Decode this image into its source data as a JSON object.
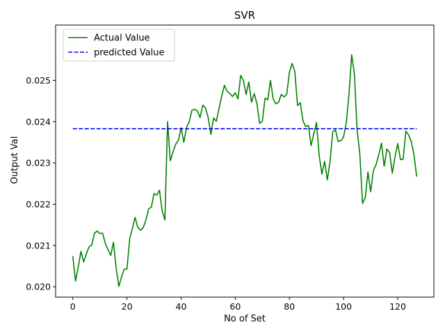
{
  "chart_data": {
    "type": "line",
    "title": "SVR",
    "xlabel": "No of Set",
    "ylabel": "Output Val",
    "xlim": [
      -6.35,
      133.35
    ],
    "ylim": [
      0.01975,
      0.02634
    ],
    "xticks": [
      0,
      20,
      40,
      60,
      80,
      100,
      120
    ],
    "xtick_labels": [
      "0",
      "20",
      "40",
      "60",
      "80",
      "100",
      "120"
    ],
    "yticks": [
      0.02,
      0.021,
      0.022,
      0.023,
      0.024,
      0.025
    ],
    "ytick_labels": [
      "0.020",
      "0.021",
      "0.022",
      "0.023",
      "0.024",
      "0.025"
    ],
    "grid": false,
    "legend_position": "upper-left",
    "series": [
      {
        "name": "Actual Value",
        "style": "solid",
        "color": "#008000",
        "x": [
          0,
          1,
          2,
          3,
          4,
          5,
          6,
          7,
          8,
          9,
          10,
          11,
          12,
          13,
          14,
          15,
          16,
          17,
          18,
          19,
          20,
          21,
          22,
          23,
          24,
          25,
          26,
          27,
          28,
          29,
          30,
          31,
          32,
          33,
          34,
          35,
          36,
          37,
          38,
          39,
          40,
          41,
          42,
          43,
          44,
          45,
          46,
          47,
          48,
          49,
          50,
          51,
          52,
          53,
          54,
          55,
          56,
          57,
          58,
          59,
          60,
          61,
          62,
          63,
          64,
          65,
          66,
          67,
          68,
          69,
          70,
          71,
          72,
          73,
          74,
          75,
          76,
          77,
          78,
          79,
          80,
          81,
          82,
          83,
          84,
          85,
          86,
          87,
          88,
          89,
          90,
          91,
          92,
          93,
          94,
          95,
          96,
          97,
          98,
          99,
          100,
          101,
          102,
          103,
          104,
          105,
          106,
          107,
          108,
          109,
          110,
          111,
          112,
          113,
          114,
          115,
          116,
          117,
          118,
          119,
          120,
          121,
          122,
          123,
          124,
          125,
          126,
          127
        ],
        "values": [
          0.02074,
          0.02014,
          0.02048,
          0.02086,
          0.0206,
          0.0208,
          0.02097,
          0.02101,
          0.0213,
          0.02135,
          0.02129,
          0.0213,
          0.02105,
          0.0209,
          0.02076,
          0.02108,
          0.02045,
          0.02001,
          0.02024,
          0.02043,
          0.02043,
          0.02116,
          0.02142,
          0.02168,
          0.02144,
          0.02137,
          0.02143,
          0.02162,
          0.02189,
          0.02193,
          0.02226,
          0.02222,
          0.02234,
          0.02184,
          0.02162,
          0.024,
          0.02305,
          0.02327,
          0.02345,
          0.02355,
          0.02385,
          0.0235,
          0.02386,
          0.024,
          0.02428,
          0.0243,
          0.02426,
          0.0241,
          0.0244,
          0.02433,
          0.0241,
          0.02369,
          0.02409,
          0.02401,
          0.02432,
          0.02462,
          0.02488,
          0.02473,
          0.02468,
          0.02461,
          0.0247,
          0.02455,
          0.02512,
          0.025,
          0.02466,
          0.02496,
          0.02447,
          0.02468,
          0.02444,
          0.02396,
          0.02401,
          0.02457,
          0.02453,
          0.025,
          0.02455,
          0.02443,
          0.02447,
          0.02466,
          0.0246,
          0.02466,
          0.0252,
          0.02541,
          0.02521,
          0.02439,
          0.02446,
          0.02402,
          0.02388,
          0.02391,
          0.02342,
          0.02371,
          0.02398,
          0.02317,
          0.02273,
          0.02304,
          0.02259,
          0.02304,
          0.02375,
          0.0238,
          0.02352,
          0.02354,
          0.02363,
          0.02397,
          0.02466,
          0.02562,
          0.02515,
          0.0238,
          0.02322,
          0.02202,
          0.02216,
          0.02278,
          0.0223,
          0.02281,
          0.02296,
          0.0232,
          0.02348,
          0.02292,
          0.02334,
          0.02325,
          0.02275,
          0.02315,
          0.02347,
          0.02308,
          0.02309,
          0.02377,
          0.02368,
          0.02352,
          0.0232,
          0.02267
        ]
      },
      {
        "name": "predicted Value",
        "style": "dashed",
        "color": "#0000ff",
        "x": [
          0,
          127
        ],
        "values": [
          0.02383,
          0.02383
        ]
      }
    ]
  }
}
